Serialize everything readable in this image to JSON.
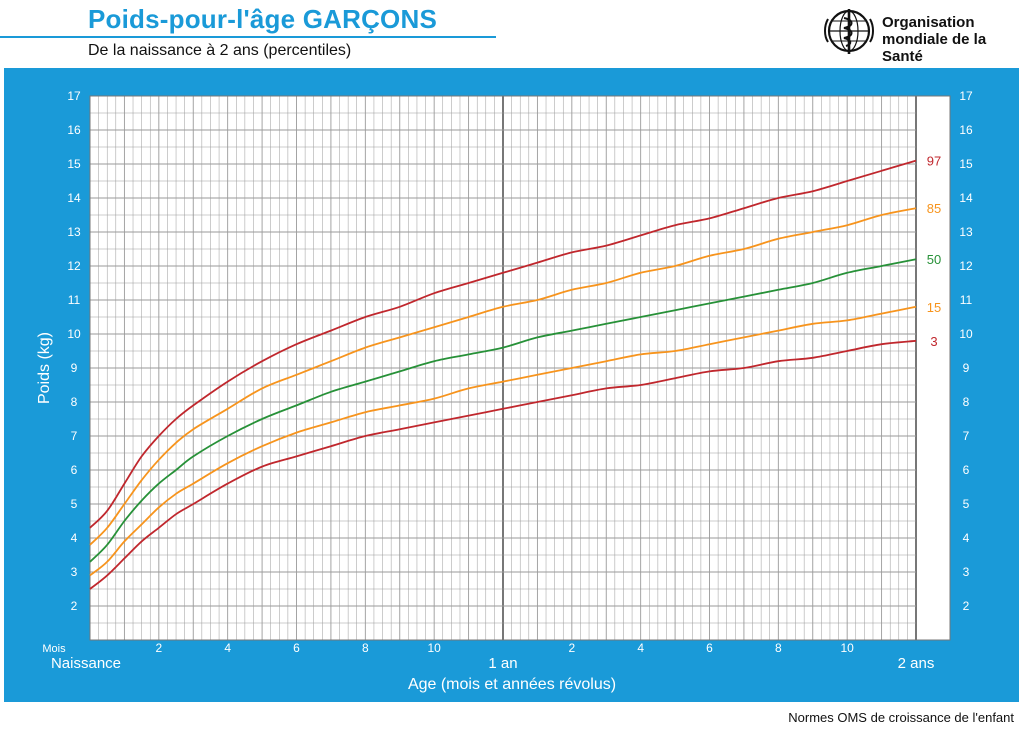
{
  "header": {
    "title": "Poids-pour-l'âge  GARÇONS",
    "subtitle": "De la naissance à 2 ans (percentiles)",
    "org_line1": "Organisation",
    "org_line2": "mondiale de la Santé",
    "org_logo_icon": "who-emblem-icon"
  },
  "footer": {
    "text": "Normes OMS de croissance de l'enfant"
  },
  "colors": {
    "panel": "#1a9ad8",
    "grid": "#9a9a9a",
    "p3": "#c0272d",
    "p15": "#f7941d",
    "p50": "#279138",
    "p85": "#f7941d",
    "p97": "#c0272d"
  },
  "chart_data": {
    "type": "line",
    "title": "Poids-pour-l'âge  GARÇONS",
    "subtitle": "De la naissance à 2 ans (percentiles)",
    "xlabel": "Age (mois et années révolus)",
    "ylabel": "Poids (kg)",
    "xlim": [
      0,
      24
    ],
    "ylim": [
      1,
      17
    ],
    "yticks": [
      2,
      3,
      4,
      5,
      6,
      7,
      8,
      9,
      10,
      11,
      12,
      13,
      14,
      15,
      16,
      17
    ],
    "x_month_label": "Mois",
    "x_start_label": "Naissance",
    "x_month_ticks": [
      {
        "x": 2,
        "label": "2"
      },
      {
        "x": 4,
        "label": "4"
      },
      {
        "x": 6,
        "label": "6"
      },
      {
        "x": 8,
        "label": "8"
      },
      {
        "x": 10,
        "label": "10"
      },
      {
        "x": 14,
        "label": "2"
      },
      {
        "x": 16,
        "label": "4"
      },
      {
        "x": 18,
        "label": "6"
      },
      {
        "x": 20,
        "label": "8"
      },
      {
        "x": 22,
        "label": "10"
      }
    ],
    "x_year_ticks": [
      {
        "x": 12,
        "label": "1 an"
      },
      {
        "x": 24,
        "label": "2 ans"
      }
    ],
    "grid": true,
    "x": [
      0,
      0.5,
      1,
      1.5,
      2,
      2.5,
      3,
      4,
      5,
      6,
      7,
      8,
      9,
      10,
      11,
      12,
      13,
      14,
      15,
      16,
      17,
      18,
      19,
      20,
      21,
      22,
      23,
      24
    ],
    "series": [
      {
        "name": "3",
        "color_key": "p3",
        "values": [
          2.5,
          2.9,
          3.4,
          3.9,
          4.3,
          4.7,
          5.0,
          5.6,
          6.1,
          6.4,
          6.7,
          7.0,
          7.2,
          7.4,
          7.6,
          7.8,
          8.0,
          8.2,
          8.4,
          8.5,
          8.7,
          8.9,
          9.0,
          9.2,
          9.3,
          9.5,
          9.7,
          9.8
        ]
      },
      {
        "name": "15",
        "color_key": "p15",
        "values": [
          2.9,
          3.3,
          3.9,
          4.4,
          4.9,
          5.3,
          5.6,
          6.2,
          6.7,
          7.1,
          7.4,
          7.7,
          7.9,
          8.1,
          8.4,
          8.6,
          8.8,
          9.0,
          9.2,
          9.4,
          9.5,
          9.7,
          9.9,
          10.1,
          10.3,
          10.4,
          10.6,
          10.8
        ]
      },
      {
        "name": "50",
        "color_key": "p50",
        "values": [
          3.3,
          3.8,
          4.5,
          5.1,
          5.6,
          6.0,
          6.4,
          7.0,
          7.5,
          7.9,
          8.3,
          8.6,
          8.9,
          9.2,
          9.4,
          9.6,
          9.9,
          10.1,
          10.3,
          10.5,
          10.7,
          10.9,
          11.1,
          11.3,
          11.5,
          11.8,
          12.0,
          12.2
        ]
      },
      {
        "name": "85",
        "color_key": "p85",
        "values": [
          3.8,
          4.3,
          5.0,
          5.7,
          6.3,
          6.8,
          7.2,
          7.8,
          8.4,
          8.8,
          9.2,
          9.6,
          9.9,
          10.2,
          10.5,
          10.8,
          11.0,
          11.3,
          11.5,
          11.8,
          12.0,
          12.3,
          12.5,
          12.8,
          13.0,
          13.2,
          13.5,
          13.7
        ]
      },
      {
        "name": "97",
        "color_key": "p97",
        "values": [
          4.3,
          4.8,
          5.6,
          6.4,
          7.0,
          7.5,
          7.9,
          8.6,
          9.2,
          9.7,
          10.1,
          10.5,
          10.8,
          11.2,
          11.5,
          11.8,
          12.1,
          12.4,
          12.6,
          12.9,
          13.2,
          13.4,
          13.7,
          14.0,
          14.2,
          14.5,
          14.8,
          15.1
        ]
      }
    ]
  }
}
